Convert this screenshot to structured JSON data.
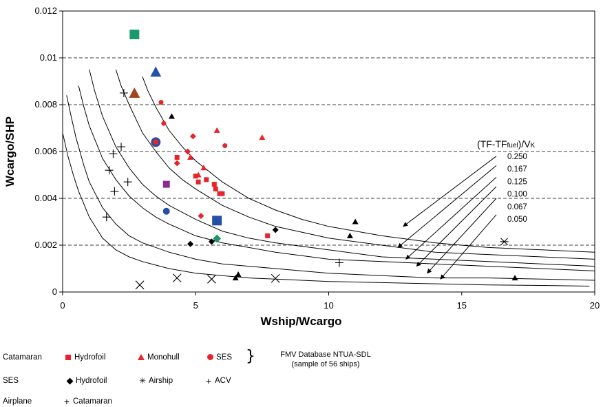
{
  "chart_data": {
    "type": "scatter",
    "xlabel": "Wship/Wcargo",
    "ylabel": "Wcargo/SHP",
    "xlim": [
      0,
      20
    ],
    "ylim": [
      0,
      0.012
    ],
    "x_ticks": [
      0,
      5,
      10,
      15,
      20
    ],
    "y_ticks": [
      0,
      0.002,
      0.004,
      0.006,
      0.008,
      0.01,
      0.012
    ],
    "x_tick_labels": [
      "0",
      "5",
      "10",
      "15",
      "20"
    ],
    "y_tick_labels": [
      "0",
      "0.002",
      "0.004",
      "0.006",
      "0.008",
      "0.01",
      "0.012"
    ],
    "grid": "horizontal dashed",
    "curves": {
      "title": "(TF-TFfuel)/VK",
      "title_parts": [
        "(TF-TF",
        "fuel",
        ")/V",
        "K"
      ],
      "labels": [
        "0.250",
        "0.167",
        "0.125",
        "0.100",
        "0.067",
        "0.050"
      ],
      "lines": [
        {
          "x": [
            3.0,
            3.2,
            3.5,
            4.0,
            4.5,
            5.0,
            6.0,
            7.0,
            8.0,
            9.0,
            10.0,
            12.0,
            14.0,
            16.0,
            18.0,
            20.0
          ],
          "y": [
            0.0092,
            0.0086,
            0.0079,
            0.0069,
            0.0062,
            0.0056,
            0.0047,
            0.004,
            0.0035,
            0.0031,
            0.0028,
            0.0024,
            0.0021,
            0.0019,
            0.0018,
            0.0017
          ]
        },
        {
          "x": [
            2.0,
            2.2,
            2.5,
            3.0,
            3.5,
            4.0,
            4.5,
            5.0,
            6.0,
            7.0,
            8.0,
            10.0,
            12.0,
            14.0,
            16.0,
            18.0,
            20.0
          ],
          "y": [
            0.0095,
            0.0088,
            0.008,
            0.0068,
            0.006,
            0.0053,
            0.0048,
            0.0044,
            0.0037,
            0.0032,
            0.0028,
            0.0023,
            0.002,
            0.0017,
            0.0016,
            0.0015,
            0.0014
          ]
        },
        {
          "x": [
            1.0,
            1.2,
            1.5,
            2.0,
            2.5,
            3.0,
            3.5,
            4.0,
            5.0,
            6.0,
            7.0,
            8.0,
            10.0,
            12.0,
            14.0,
            16.0,
            18.0,
            20.0
          ],
          "y": [
            0.0095,
            0.0086,
            0.0075,
            0.0062,
            0.0053,
            0.0046,
            0.0041,
            0.0037,
            0.0031,
            0.0026,
            0.0023,
            0.0021,
            0.0018,
            0.0015,
            0.0014,
            0.0013,
            0.0012,
            0.0011
          ]
        },
        {
          "x": [
            0.6,
            0.8,
            1.0,
            1.5,
            2.0,
            2.5,
            3.0,
            3.5,
            4.0,
            5.0,
            6.0,
            7.0,
            8.0,
            10.0,
            12.0,
            14.0,
            16.0,
            18.0,
            20.0
          ],
          "y": [
            0.0088,
            0.0079,
            0.0071,
            0.0057,
            0.0048,
            0.0041,
            0.0036,
            0.0032,
            0.0029,
            0.0024,
            0.0021,
            0.0019,
            0.0017,
            0.0014,
            0.0013,
            0.0012,
            0.0011,
            0.001,
            0.0009
          ]
        },
        {
          "x": [
            0.15,
            0.3,
            0.5,
            0.8,
            1.0,
            1.5,
            2.0,
            2.5,
            3.0,
            4.0,
            5.0,
            6.0,
            7.0,
            8.0,
            10.0,
            12.0,
            14.0,
            16.0,
            18.0,
            20.0
          ],
          "y": [
            0.0084,
            0.0076,
            0.0066,
            0.0054,
            0.0047,
            0.0036,
            0.0029,
            0.0024,
            0.0021,
            0.0017,
            0.0014,
            0.0012,
            0.0011,
            0.001,
            0.0008,
            0.0007,
            0.0006,
            0.0006,
            0.00055,
            0.0005
          ]
        },
        {
          "x": [
            0.0,
            0.2,
            0.4,
            0.6,
            1.0,
            1.5,
            2.0,
            2.5,
            3.0,
            4.0,
            5.0,
            6.0,
            7.0,
            8.0,
            10.0,
            12.0,
            14.0,
            16.0,
            18.0,
            19.8
          ],
          "y": [
            0.0068,
            0.0058,
            0.005,
            0.0043,
            0.0032,
            0.0023,
            0.0018,
            0.0015,
            0.0013,
            0.001,
            0.0008,
            0.0007,
            0.0006,
            0.00055,
            0.00045,
            0.0004,
            0.00035,
            0.0003,
            0.00028,
            0.00025
          ]
        }
      ],
      "arrows": [
        {
          "from": [
            16.3,
            0.0058
          ],
          "to": [
            12.8,
            0.0028
          ]
        },
        {
          "from": [
            16.3,
            0.0054
          ],
          "to": [
            12.6,
            0.0019
          ]
        },
        {
          "from": [
            16.3,
            0.0049
          ],
          "to": [
            12.9,
            0.0014
          ]
        },
        {
          "from": [
            16.3,
            0.0045
          ],
          "to": [
            13.3,
            0.0011
          ]
        },
        {
          "from": [
            16.3,
            0.004
          ],
          "to": [
            13.7,
            0.0008
          ]
        },
        {
          "from": [
            16.3,
            0.0033
          ],
          "to": [
            14.2,
            0.00055
          ]
        }
      ]
    },
    "series": [
      {
        "name": "Hydrofoil",
        "group": "Catamaran",
        "marker": "square",
        "color": "#e8242a",
        "points": [
          [
            4.3,
            0.00575
          ],
          [
            5.0,
            0.00495
          ],
          [
            5.1,
            0.0047
          ],
          [
            5.4,
            0.0048
          ],
          [
            5.7,
            0.0046
          ],
          [
            5.75,
            0.0044
          ],
          [
            5.9,
            0.0042
          ],
          [
            6.0,
            0.0042
          ],
          [
            7.7,
            0.0024
          ]
        ]
      },
      {
        "name": "Monohull",
        "group": "Catamaran",
        "marker": "triangle",
        "color": "#e8242a",
        "points": [
          [
            4.8,
            0.00575
          ],
          [
            5.3,
            0.0053
          ],
          [
            5.1,
            0.005
          ],
          [
            5.8,
            0.0069
          ],
          [
            7.5,
            0.0066
          ]
        ]
      },
      {
        "name": "SES",
        "group": "Catamaran",
        "marker": "circle",
        "color": "#e8242a",
        "points": [
          [
            3.7,
            0.0081
          ],
          [
            3.8,
            0.0072
          ],
          [
            3.5,
            0.0064
          ],
          [
            6.1,
            0.00625
          ]
        ]
      },
      {
        "name": "Hydrofoil",
        "group": "SES",
        "marker": "diamond",
        "color": "#e8242a",
        "points": [
          [
            4.3,
            0.0055
          ],
          [
            4.7,
            0.006
          ],
          [
            4.9,
            0.00665
          ],
          [
            5.2,
            0.00325
          ]
        ]
      },
      {
        "name": "Hydrofoil",
        "group": "SES",
        "marker": "diamond",
        "color": "#000000",
        "points": [
          [
            4.8,
            0.00205
          ],
          [
            5.6,
            0.00215
          ],
          [
            8.0,
            0.00265
          ]
        ]
      },
      {
        "name": "",
        "group": "",
        "marker": "triangle",
        "color": "#000000",
        "points": [
          [
            4.1,
            0.0075
          ],
          [
            6.5,
            0.0006
          ],
          [
            6.6,
            0.00075
          ],
          [
            10.8,
            0.0024
          ],
          [
            11.0,
            0.003
          ],
          [
            17.0,
            0.0006
          ]
        ]
      },
      {
        "name": "Airship",
        "group": "SES",
        "marker": "asterisk",
        "color": "#000000",
        "points": [
          [
            16.6,
            0.00215
          ]
        ]
      },
      {
        "name": "ACV",
        "group": "SES",
        "marker": "plus",
        "color": "#000000",
        "points": [
          [
            2.3,
            0.0085
          ],
          [
            2.2,
            0.0062
          ],
          [
            2.45,
            0.0047
          ],
          [
            1.75,
            0.0052
          ],
          [
            1.9,
            0.0059
          ],
          [
            1.95,
            0.0043
          ],
          [
            1.65,
            0.0032
          ],
          [
            10.4,
            0.00125
          ]
        ]
      },
      {
        "name": "Catamaran",
        "group": "Airplane",
        "marker": "x",
        "color": "#000000",
        "points": [
          [
            2.9,
            0.0003
          ],
          [
            4.3,
            0.0006
          ],
          [
            5.6,
            0.00055
          ],
          [
            8.0,
            0.00058
          ]
        ]
      },
      {
        "name": "",
        "group": "",
        "marker": "square-big",
        "color": "#1a9a6c",
        "points": [
          [
            2.7,
            0.011
          ]
        ]
      },
      {
        "name": "",
        "group": "",
        "marker": "triangle-big",
        "color": "#2450a8",
        "points": [
          [
            3.5,
            0.0094
          ]
        ]
      },
      {
        "name": "",
        "group": "",
        "marker": "triangle-big",
        "color": "#a0461e",
        "points": [
          [
            2.7,
            0.0085
          ]
        ]
      },
      {
        "name": "",
        "group": "",
        "marker": "circle-big",
        "color": "#2450a8",
        "points": [
          [
            3.5,
            0.0064
          ]
        ]
      },
      {
        "name": "",
        "group": "",
        "marker": "square-mid",
        "color": "#8b2b8f",
        "points": [
          [
            3.9,
            0.0046
          ]
        ]
      },
      {
        "name": "",
        "group": "",
        "marker": "circle-mid",
        "color": "#2450a8",
        "points": [
          [
            3.9,
            0.00345
          ]
        ]
      },
      {
        "name": "",
        "group": "",
        "marker": "square-big",
        "color": "#2450a8",
        "points": [
          [
            5.8,
            0.00305
          ]
        ]
      },
      {
        "name": "",
        "group": "",
        "marker": "diamond-mid",
        "color": "#1a9a6c",
        "points": [
          [
            5.8,
            0.00228
          ]
        ]
      }
    ],
    "colors": {
      "axis": "#000000",
      "grid": "#000000",
      "red": "#e8242a"
    }
  },
  "legend": {
    "row1": {
      "group": "Catamaran",
      "items": [
        "Hydrofoil",
        "Monohull",
        "SES"
      ],
      "brace": "}",
      "note_line1": "FMV Database  NTUA-SDL",
      "note_line2": "(sample of 56 ships)"
    },
    "row2": {
      "group": "SES",
      "items": [
        "Hydrofoil",
        "Airship",
        "ACV"
      ]
    },
    "row3": {
      "group": "Airplane",
      "items": [
        "Catamaran"
      ]
    }
  }
}
